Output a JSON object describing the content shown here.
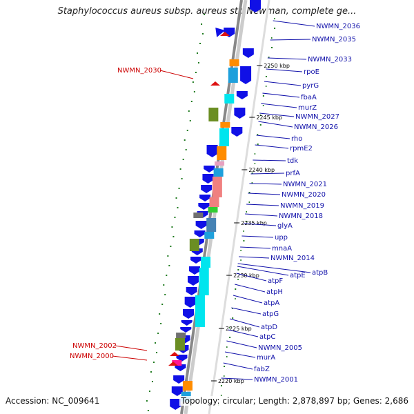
{
  "title": "Staphylococcus aureus subsp. aureus str. Newman, complete ge...",
  "footer": {
    "accession": "Accession: NC_009641",
    "summary": "Topology: circular; Length: 2,878,897 bp; Genes: 2,686"
  },
  "colors": {
    "cds": "#1010e6",
    "rna": "#dd1111",
    "label_blue": "#1111aa",
    "label_red": "#cc0000",
    "backbone": "#888888",
    "gc_dots": "#1e7a1e",
    "cog_cyan": "#00e5ee",
    "cog_sky": "#1ea0dc",
    "cog_orange": "#ff8c00",
    "cog_olive": "#6b8e23",
    "cog_salmon": "#f08080",
    "cog_green": "#32cd32",
    "cog_steel": "#4682b4",
    "cog_gray": "#707070",
    "cog_magenta": "#ff1493",
    "cog_pink": "#e8a0c0"
  },
  "scale_ticks": [
    "2250 kbp",
    "2245 kbp",
    "2240 kbp",
    "2235 kbp",
    "2230 kbp",
    "2225 kbp",
    "2220 kbp"
  ],
  "genes_right": [
    "NWMN_2036",
    "NWMN_2035",
    "NWMN_2033",
    "rpoE",
    "pyrG",
    "fbaA",
    "murZ",
    "NWMN_2027",
    "NWMN_2026",
    "rho",
    "rpmE2",
    "tdk",
    "prfA",
    "NWMN_2021",
    "NWMN_2020",
    "NWMN_2019",
    "NWMN_2018",
    "glyA",
    "upp",
    "mnaA",
    "NWMN_2014",
    "atpB",
    "atpE",
    "atpF",
    "atpH",
    "atpA",
    "atpG",
    "atpD",
    "atpC",
    "NWMN_2005",
    "murA",
    "fabZ",
    "NWMN_2001"
  ],
  "genes_left": [
    "NWMN_2030",
    "NWMN_2002",
    "NWMN_2000"
  ]
}
